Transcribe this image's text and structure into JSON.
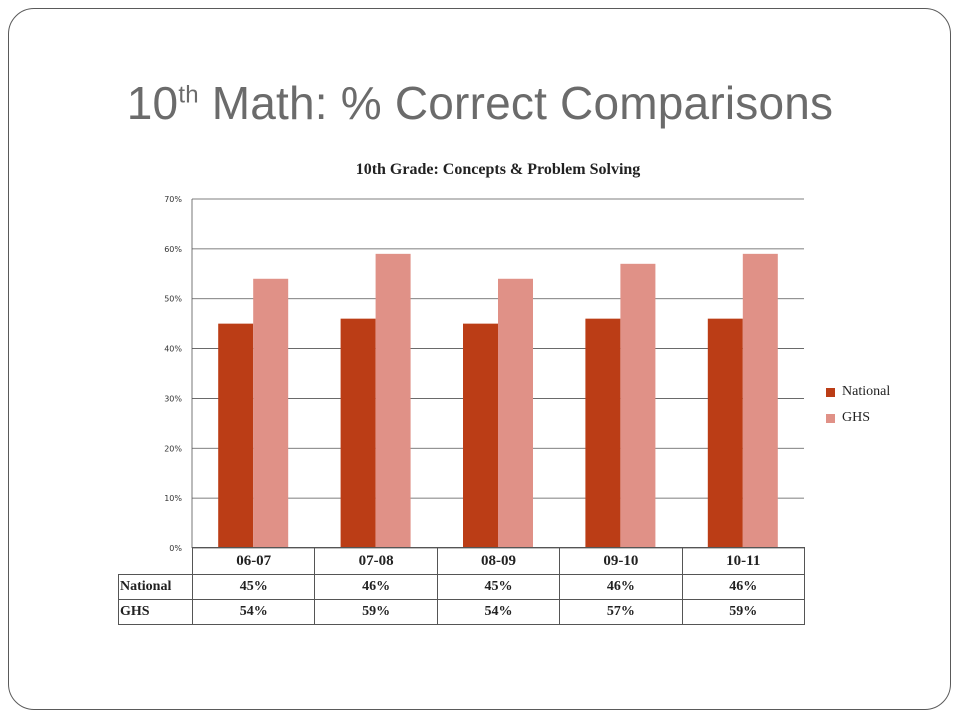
{
  "slide": {
    "title_main": "10",
    "title_sup": "th",
    "title_rest": " Math: % Correct Comparisons"
  },
  "chart_data": {
    "type": "bar",
    "title": "10th Grade: Concepts & Problem Solving",
    "categories": [
      "06-07",
      "07-08",
      "08-09",
      "09-10",
      "10-11"
    ],
    "series": [
      {
        "name": "National",
        "values": [
          45,
          46,
          45,
          46,
          46
        ],
        "labels": [
          "45%",
          "46%",
          "45%",
          "46%",
          "46%"
        ],
        "color": "#bb3d16"
      },
      {
        "name": "GHS",
        "values": [
          54,
          59,
          54,
          57,
          59
        ],
        "labels": [
          "54%",
          "59%",
          "54%",
          "57%",
          "59%"
        ],
        "color": "#e09187"
      }
    ],
    "ylim": [
      0,
      70
    ],
    "yticks": [
      "0%",
      "10%",
      "20%",
      "30%",
      "40%",
      "50%",
      "60%",
      "70%"
    ],
    "grid": true,
    "legend_position": "right",
    "data_table": true
  }
}
